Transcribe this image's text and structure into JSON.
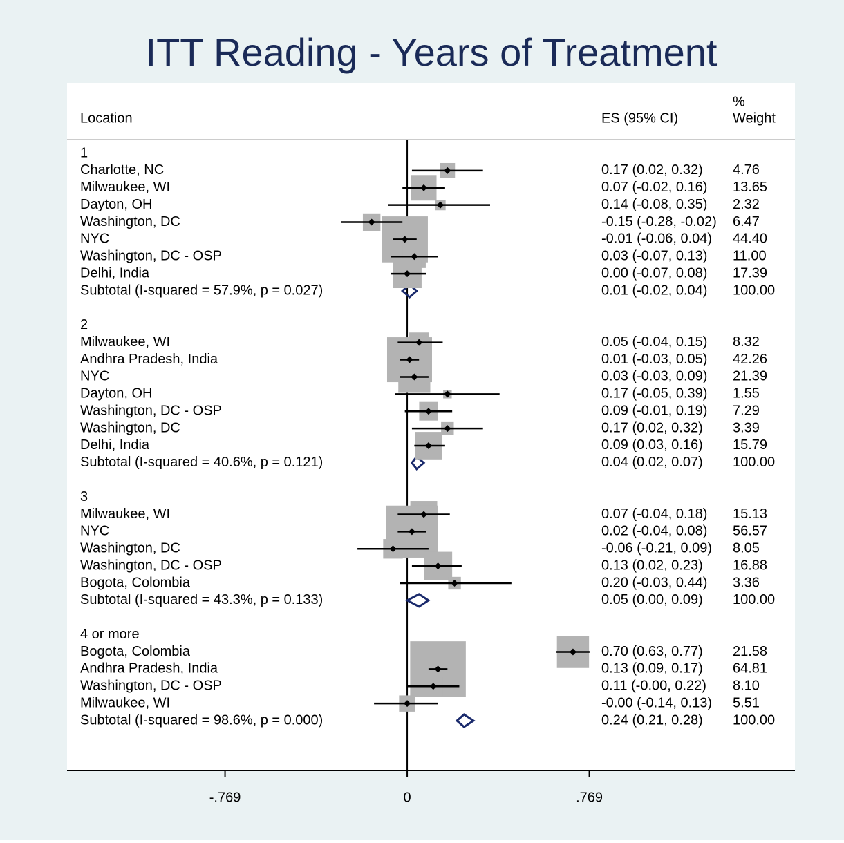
{
  "chart_data": {
    "type": "forest",
    "title": "ITT Reading - Years of Treatment",
    "headers": {
      "location": "Location",
      "es": "ES (95% CI)",
      "weight_symbol": "%",
      "weight": "Weight"
    },
    "xlim": [
      -1.436,
      1.637
    ],
    "xticks": [
      {
        "value": -0.769,
        "label": "-.769"
      },
      0,
      {
        "value": 0.769,
        "label": ".769"
      }
    ],
    "box_color": "#b3b3b3",
    "diamond_color": "#1a2a6c",
    "groups": [
      {
        "name": "1",
        "studies": [
          {
            "location": "Charlotte, NC",
            "es": 0.17,
            "lo": 0.02,
            "hi": 0.32,
            "ci_label": "0.17 (0.02, 0.32)",
            "weight": 4.76
          },
          {
            "location": "Milwaukee, WI",
            "es": 0.07,
            "lo": -0.02,
            "hi": 0.16,
            "ci_label": "0.07 (-0.02, 0.16)",
            "weight": 13.65
          },
          {
            "location": "Dayton, OH",
            "es": 0.14,
            "lo": -0.08,
            "hi": 0.35,
            "ci_label": "0.14 (-0.08, 0.35)",
            "weight": 2.32
          },
          {
            "location": "Washington, DC",
            "es": -0.15,
            "lo": -0.28,
            "hi": -0.02,
            "ci_label": "-0.15 (-0.28, -0.02)",
            "weight": 6.47
          },
          {
            "location": "NYC",
            "es": -0.01,
            "lo": -0.06,
            "hi": 0.04,
            "ci_label": "-0.01 (-0.06, 0.04)",
            "weight": {
              "value": 44.4,
              "label": "44.40"
            }
          },
          {
            "location": "Washington, DC - OSP",
            "es": 0.03,
            "lo": -0.07,
            "hi": 0.13,
            "ci_label": "0.03 (-0.07, 0.13)",
            "weight": {
              "value": 11,
              "label": "11.00"
            }
          },
          {
            "location": "Delhi, India",
            "es": 0,
            "lo": -0.07,
            "hi": 0.08,
            "ci_label": "0.00 (-0.07, 0.08)",
            "weight": 17.39
          }
        ],
        "subtotal": {
          "label": "Subtotal  (I-squared = 57.9%, p = 0.027)",
          "es": 0.01,
          "lo": -0.02,
          "hi": 0.04,
          "ci_label": "0.01 (-0.02, 0.04)",
          "weight": {
            "value": 100,
            "label": "100.00"
          }
        }
      },
      {
        "name": "2",
        "studies": [
          {
            "location": "Milwaukee, WI",
            "es": 0.05,
            "lo": -0.04,
            "hi": 0.15,
            "ci_label": "0.05 (-0.04, 0.15)",
            "weight": 8.32
          },
          {
            "location": "Andhra Pradesh, India",
            "es": 0.01,
            "lo": -0.03,
            "hi": 0.05,
            "ci_label": "0.01 (-0.03, 0.05)",
            "weight": 42.26
          },
          {
            "location": "NYC",
            "es": 0.03,
            "lo": -0.03,
            "hi": 0.09,
            "ci_label": "0.03 (-0.03, 0.09)",
            "weight": 21.39
          },
          {
            "location": "Dayton, OH",
            "es": 0.17,
            "lo": -0.05,
            "hi": 0.39,
            "ci_label": "0.17 (-0.05, 0.39)",
            "weight": 1.55
          },
          {
            "location": "Washington, DC - OSP",
            "es": 0.09,
            "lo": -0.01,
            "hi": 0.19,
            "ci_label": "0.09 (-0.01, 0.19)",
            "weight": 7.29
          },
          {
            "location": "Washington, DC",
            "es": 0.17,
            "lo": 0.02,
            "hi": 0.32,
            "ci_label": "0.17 (0.02, 0.32)",
            "weight": 3.39
          },
          {
            "location": "Delhi, India",
            "es": 0.09,
            "lo": 0.03,
            "hi": 0.16,
            "ci_label": "0.09 (0.03, 0.16)",
            "weight": 15.79
          }
        ],
        "subtotal": {
          "label": "Subtotal  (I-squared = 40.6%, p = 0.121)",
          "es": 0.04,
          "lo": 0.02,
          "hi": 0.07,
          "ci_label": "0.04 (0.02, 0.07)",
          "weight": {
            "value": 100,
            "label": "100.00"
          }
        }
      },
      {
        "name": "3",
        "studies": [
          {
            "location": "Milwaukee, WI",
            "es": 0.07,
            "lo": -0.04,
            "hi": 0.18,
            "ci_label": "0.07 (-0.04, 0.18)",
            "weight": 15.13
          },
          {
            "location": "NYC",
            "es": 0.02,
            "lo": -0.04,
            "hi": 0.08,
            "ci_label": "0.02 (-0.04, 0.08)",
            "weight": 56.57
          },
          {
            "location": "Washington, DC",
            "es": -0.06,
            "lo": -0.21,
            "hi": 0.09,
            "ci_label": "-0.06 (-0.21, 0.09)",
            "weight": 8.05
          },
          {
            "location": "Washington, DC - OSP",
            "es": 0.13,
            "lo": 0.02,
            "hi": 0.23,
            "ci_label": "0.13 (0.02, 0.23)",
            "weight": 16.88
          },
          {
            "location": "Bogota, Colombia",
            "es": 0.2,
            "lo": -0.03,
            "hi": 0.44,
            "ci_label": "0.20 (-0.03, 0.44)",
            "weight": 3.36
          }
        ],
        "subtotal": {
          "label": "Subtotal  (I-squared = 43.3%, p = 0.133)",
          "es": 0.05,
          "lo": 0,
          "hi": 0.09,
          "ci_label": "0.05 (0.00, 0.09)",
          "weight": {
            "value": 100,
            "label": "100.00"
          }
        }
      },
      {
        "name": "4 or more",
        "studies": [
          {
            "location": "Bogota, Colombia",
            "es": 0.7,
            "lo": 0.63,
            "hi": 0.77,
            "ci_label": "0.70 (0.63, 0.77)",
            "weight": 21.58
          },
          {
            "location": "Andhra Pradesh, India",
            "es": 0.13,
            "lo": 0.09,
            "hi": 0.17,
            "ci_label": "0.13 (0.09, 0.17)",
            "weight": 64.81
          },
          {
            "location": "Washington, DC - OSP",
            "es": 0.11,
            "lo": 0,
            "hi": 0.22,
            "ci_label": "0.11 (-0.00, 0.22)",
            "weight": {
              "value": 8.1,
              "label": "8.10"
            }
          },
          {
            "location": "Milwaukee, WI",
            "es": 0,
            "lo": -0.14,
            "hi": 0.13,
            "ci_label": "-0.00 (-0.14, 0.13)",
            "weight": 5.51
          }
        ],
        "subtotal": {
          "label": "Subtotal  (I-squared = 98.6%, p = 0.000)",
          "es": 0.24,
          "lo": 0.21,
          "hi": 0.28,
          "ci_label": "0.24 (0.21, 0.28)",
          "weight": {
            "value": 100,
            "label": "100.00"
          }
        }
      }
    ]
  }
}
